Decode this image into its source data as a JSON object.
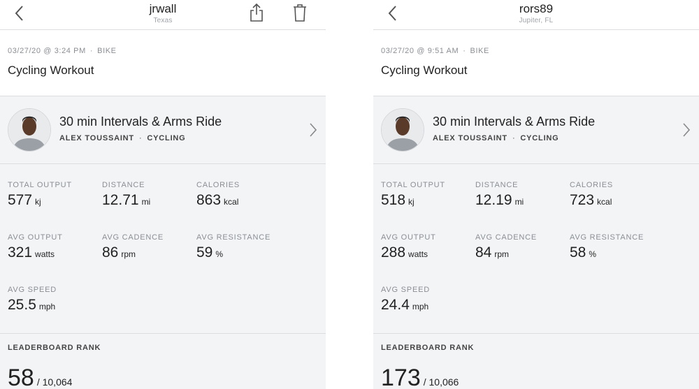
{
  "panels": [
    {
      "header": {
        "title": "jrwall",
        "subtitle": "Texas"
      },
      "workout": {
        "date": "03/27/20 @ 3:24 PM",
        "type": "BIKE",
        "title": "Cycling Workout"
      },
      "ride": {
        "title": "30 min Intervals & Arms Ride",
        "instructor": "ALEX TOUSSAINT",
        "discipline": "CYCLING"
      },
      "stats": {
        "total_output": {
          "label": "TOTAL OUTPUT",
          "value": "577",
          "unit": "kj"
        },
        "distance": {
          "label": "DISTANCE",
          "value": "12.71",
          "unit": "mi"
        },
        "calories": {
          "label": "CALORIES",
          "value": "863",
          "unit": "kcal"
        },
        "avg_output": {
          "label": "AVG OUTPUT",
          "value": "321",
          "unit": "watts"
        },
        "avg_cadence": {
          "label": "AVG CADENCE",
          "value": "86",
          "unit": "rpm"
        },
        "avg_resistance": {
          "label": "AVG RESISTANCE",
          "value": "59",
          "unit": "%"
        },
        "avg_speed": {
          "label": "AVG SPEED",
          "value": "25.5",
          "unit": "mph"
        }
      },
      "leaderboard": {
        "label": "LEADERBOARD RANK",
        "rank": "58",
        "total": "/ 10,064"
      }
    },
    {
      "header": {
        "title": "rors89",
        "subtitle": "Jupiter, FL"
      },
      "workout": {
        "date": "03/27/20 @ 9:51 AM",
        "type": "BIKE",
        "title": "Cycling Workout"
      },
      "ride": {
        "title": "30 min Intervals & Arms Ride",
        "instructor": "ALEX TOUSSAINT",
        "discipline": "CYCLING"
      },
      "stats": {
        "total_output": {
          "label": "TOTAL OUTPUT",
          "value": "518",
          "unit": "kj"
        },
        "distance": {
          "label": "DISTANCE",
          "value": "12.19",
          "unit": "mi"
        },
        "calories": {
          "label": "CALORIES",
          "value": "723",
          "unit": "kcal"
        },
        "avg_output": {
          "label": "AVG OUTPUT",
          "value": "288",
          "unit": "watts"
        },
        "avg_cadence": {
          "label": "AVG CADENCE",
          "value": "84",
          "unit": "rpm"
        },
        "avg_resistance": {
          "label": "AVG RESISTANCE",
          "value": "58",
          "unit": "%"
        },
        "avg_speed": {
          "label": "AVG SPEED",
          "value": "24.4",
          "unit": "mph"
        }
      },
      "leaderboard": {
        "label": "LEADERBOARD RANK",
        "rank": "173",
        "total": "/ 10,066"
      }
    }
  ],
  "icons": {
    "back": "chevron-left-icon",
    "share": "share-icon",
    "trash": "trash-icon",
    "ride_open": "chevron-right-icon",
    "avatar": "instructor-avatar"
  },
  "colors": {
    "panel_bg": "#f3f4f6",
    "card_bg": "#ffffff",
    "label_gray": "#8a8e94",
    "divider": "#dcdde0"
  }
}
